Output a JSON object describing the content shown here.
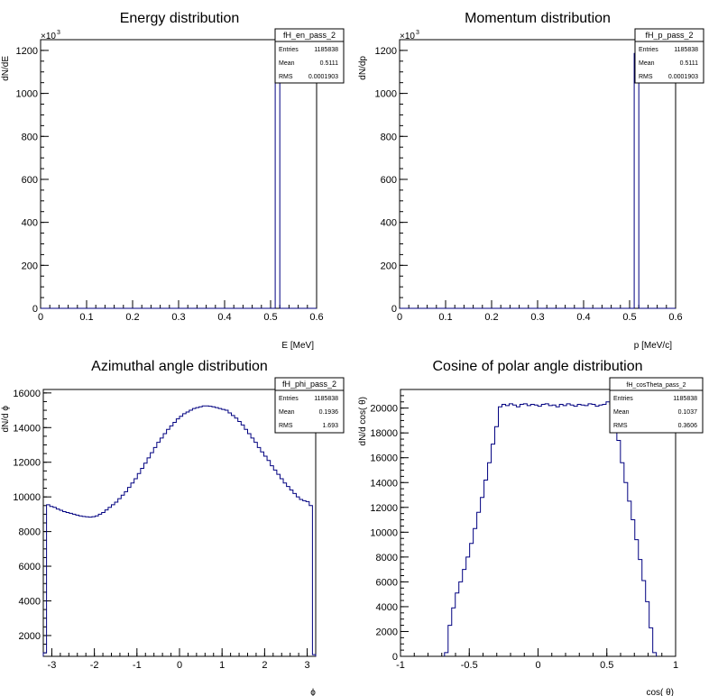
{
  "chart_data": [
    {
      "type": "line",
      "title": "Energy distribution",
      "xlabel": "E [MeV]",
      "ylabel": "dN/dE",
      "xlim": [
        0,
        0.6
      ],
      "ylim": [
        0,
        1250000
      ],
      "x_ticks": [
        0,
        0.1,
        0.2,
        0.3,
        0.4,
        0.5,
        0.6
      ],
      "x_tick_labels": [
        "0",
        "0.1",
        "0.2",
        "0.3",
        "0.4",
        "0.5",
        "0.6"
      ],
      "y_ticks": [
        0,
        200000,
        400000,
        600000,
        800000,
        1000000,
        1200000
      ],
      "y_tick_labels": [
        "0",
        "200",
        "400",
        "600",
        "800",
        "1000",
        "1200"
      ],
      "y_exponent": "×10",
      "y_exponent_power": "3",
      "histogram": {
        "edges": [
          0,
          0.51,
          0.52,
          0.6
        ],
        "values": [
          0,
          1185838,
          0
        ]
      },
      "stats": {
        "name": "fH_en_pass_2",
        "rows": [
          {
            "label": "Entries",
            "value": "1185838"
          },
          {
            "label": "Mean",
            "value": "0.5111"
          },
          {
            "label": "RMS",
            "value": "0.0001903"
          }
        ]
      }
    },
    {
      "type": "line",
      "title": "Momentum distribution",
      "xlabel": "p [MeV/c]",
      "ylabel": "dN/dp",
      "xlim": [
        0,
        0.6
      ],
      "ylim": [
        0,
        1250000
      ],
      "x_ticks": [
        0,
        0.1,
        0.2,
        0.3,
        0.4,
        0.5,
        0.6
      ],
      "x_tick_labels": [
        "0",
        "0.1",
        "0.2",
        "0.3",
        "0.4",
        "0.5",
        "0.6"
      ],
      "y_ticks": [
        0,
        200000,
        400000,
        600000,
        800000,
        1000000,
        1200000
      ],
      "y_tick_labels": [
        "0",
        "200",
        "400",
        "600",
        "800",
        "1000",
        "1200"
      ],
      "y_exponent": "×10",
      "y_exponent_power": "3",
      "histogram": {
        "edges": [
          0,
          0.51,
          0.52,
          0.6
        ],
        "values": [
          0,
          1185838,
          0
        ]
      },
      "stats": {
        "name": "fH_p_pass_2",
        "rows": [
          {
            "label": "Entries",
            "value": "1185838"
          },
          {
            "label": "Mean",
            "value": "0.5111"
          },
          {
            "label": "RMS",
            "value": "0.0001903"
          }
        ]
      }
    },
    {
      "type": "line",
      "title": "Azimuthal angle distribution",
      "xlabel": "ϕ",
      "ylabel": "dN/d ϕ",
      "xlim": [
        -3.2,
        3.2
      ],
      "ylim": [
        800,
        16200
      ],
      "x_ticks": [
        -3,
        -2,
        -1,
        0,
        1,
        2,
        3
      ],
      "x_tick_labels": [
        "-3",
        "-2",
        "-1",
        "0",
        "1",
        "2",
        "3"
      ],
      "y_ticks": [
        2000,
        4000,
        6000,
        8000,
        10000,
        12000,
        14000,
        16000
      ],
      "y_tick_labels": [
        "2000",
        "4000",
        "6000",
        "8000",
        "10000",
        "12000",
        "14000",
        "16000"
      ],
      "histogram": {
        "x_min": -3.2,
        "x_max": 3.2,
        "values": [
          1000,
          9550,
          9450,
          9400,
          9300,
          9230,
          9150,
          9100,
          9050,
          9000,
          8950,
          8900,
          8870,
          8850,
          8830,
          8860,
          8900,
          9000,
          9100,
          9250,
          9400,
          9550,
          9700,
          9900,
          10100,
          10300,
          10550,
          10800,
          11050,
          11350,
          11650,
          11950,
          12250,
          12550,
          12850,
          13150,
          13400,
          13650,
          13900,
          14100,
          14300,
          14500,
          14650,
          14800,
          14900,
          15000,
          15100,
          15150,
          15200,
          15250,
          15250,
          15230,
          15200,
          15150,
          15100,
          15050,
          15000,
          14850,
          14700,
          14550,
          14350,
          14150,
          13900,
          13650,
          13400,
          13150,
          12850,
          12600,
          12350,
          12100,
          11800,
          11550,
          11300,
          11050,
          10800,
          10600,
          10400,
          10200,
          10000,
          9850,
          9780,
          9730,
          9500,
          900
        ]
      },
      "stats": {
        "name": "fH_phi_pass_2",
        "rows": [
          {
            "label": "Entries",
            "value": "1185838"
          },
          {
            "label": "Mean",
            "value": "0.1936"
          },
          {
            "label": "RMS",
            "value": "1.693"
          }
        ]
      }
    },
    {
      "type": "line",
      "title": "Cosine of polar angle distribution",
      "xlabel": "cos( θ)",
      "ylabel": "dN/d cos( θ)",
      "xlim": [
        -1,
        1
      ],
      "ylim": [
        0,
        21500
      ],
      "x_ticks": [
        -1,
        -0.5,
        0,
        0.5,
        1
      ],
      "x_tick_labels": [
        "-1",
        "-0.5",
        "0",
        "0.5",
        "1"
      ],
      "y_ticks": [
        0,
        2000,
        4000,
        6000,
        8000,
        10000,
        12000,
        14000,
        16000,
        18000,
        20000
      ],
      "y_tick_labels": [
        "0",
        "2000",
        "4000",
        "6000",
        "8000",
        "10000",
        "12000",
        "14000",
        "16000",
        "18000",
        "20000"
      ],
      "histogram": {
        "x_min": -0.68,
        "x_max": 0.86,
        "values": [
          300,
          2500,
          3900,
          5100,
          6000,
          7000,
          8000,
          9100,
          10300,
          11600,
          12800,
          14200,
          15600,
          17100,
          18500,
          20100,
          20300,
          20200,
          20350,
          20250,
          20100,
          20300,
          20350,
          20200,
          20300,
          20250,
          20150,
          20300,
          20350,
          20200,
          20250,
          20100,
          20300,
          20200,
          20350,
          20250,
          20150,
          20300,
          20250,
          20200,
          20350,
          20300,
          20150,
          20250,
          20300,
          20500,
          20300,
          18900,
          17400,
          15600,
          14000,
          12500,
          11000,
          9400,
          7800,
          6100,
          4400,
          2300,
          300
        ]
      },
      "stats": {
        "name": "fH_cosTheta_pass_2",
        "rows": [
          {
            "label": "Entries",
            "value": "1185838"
          },
          {
            "label": "Mean",
            "value": "0.1037"
          },
          {
            "label": "RMS",
            "value": "0.3606"
          }
        ]
      }
    }
  ]
}
